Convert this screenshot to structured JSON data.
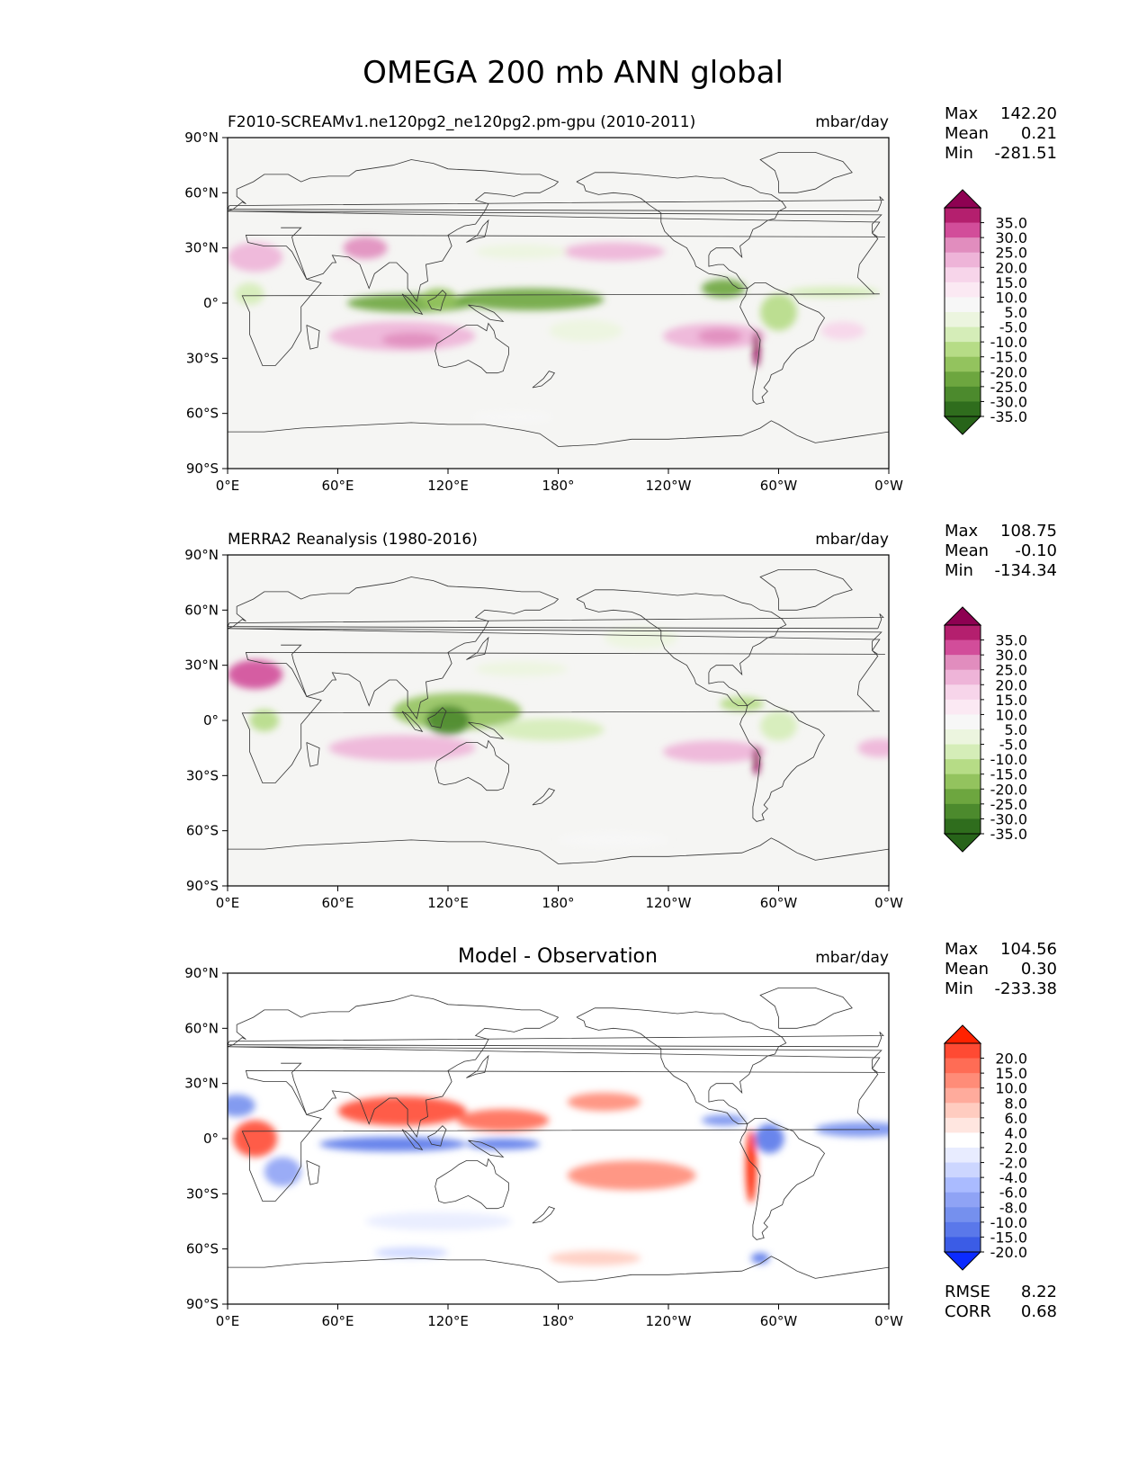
{
  "figure_title": "OMEGA 200 mb ANN global",
  "colors": {
    "ocean_bg": "#f5f5f3",
    "coast": "#333333",
    "piyg": [
      "#8e0152",
      "#b41f6e",
      "#d24d9a",
      "#e18dbe",
      "#eeb4d8",
      "#f7d5ea",
      "#fbe9f3",
      "#f7f7f7",
      "#ecf5df",
      "#d5edb8",
      "#b6dc86",
      "#93c35e",
      "#6da63f",
      "#4c8a2d",
      "#2f6d1d",
      "#276419"
    ],
    "diff": [
      "#ff2200",
      "#ff4a33",
      "#ff6c55",
      "#ff8c78",
      "#ffab9c",
      "#ffccc0",
      "#ffe6e0",
      "#ffffff",
      "#e8ecff",
      "#ccd6ff",
      "#aabbff",
      "#8fa3f5",
      "#7590ee",
      "#5a78ea",
      "#3b5ce6",
      "#0b2bff"
    ]
  },
  "panels": [
    {
      "id": "test",
      "left_title": "F2010-SCREAMv1.ne120pg2_ne120pg2.pm-gpu (2010-2011)",
      "center_title": "",
      "units": "mbar/day",
      "stats": [
        {
          "label": "Max",
          "value": "142.20"
        },
        {
          "label": "Mean",
          "value": "0.21"
        },
        {
          "label": "Min",
          "value": "-281.51"
        }
      ],
      "colorbar_labels": [
        "35.0",
        "30.0",
        "25.0",
        "20.0",
        "15.0",
        "10.0",
        "5.0",
        "-5.0",
        "-10.0",
        "-15.0",
        "-20.0",
        "-25.0",
        "-30.0",
        "-35.0"
      ]
    },
    {
      "id": "ref",
      "left_title": "MERRA2 Reanalysis (1980-2016)",
      "center_title": "",
      "units": "mbar/day",
      "stats": [
        {
          "label": "Max",
          "value": "108.75"
        },
        {
          "label": "Mean",
          "value": "-0.10"
        },
        {
          "label": "Min",
          "value": "-134.34"
        }
      ],
      "colorbar_labels": [
        "35.0",
        "30.0",
        "25.0",
        "20.0",
        "15.0",
        "10.0",
        "5.0",
        "-5.0",
        "-10.0",
        "-15.0",
        "-20.0",
        "-25.0",
        "-30.0",
        "-35.0"
      ]
    },
    {
      "id": "diff",
      "left_title": "",
      "center_title": "Model - Observation",
      "units": "mbar/day",
      "stats": [
        {
          "label": "Max",
          "value": "104.56"
        },
        {
          "label": "Mean",
          "value": "0.30"
        },
        {
          "label": "Min",
          "value": "-233.38"
        }
      ],
      "colorbar_labels": [
        "20.0",
        "15.0",
        "10.0",
        "8.0",
        "6.0",
        "4.0",
        "2.0",
        "-2.0",
        "-4.0",
        "-6.0",
        "-8.0",
        "-10.0",
        "-15.0",
        "-20.0"
      ],
      "footer_stats": [
        {
          "label": "RMSE",
          "value": "8.22"
        },
        {
          "label": "CORR",
          "value": "0.68"
        }
      ]
    }
  ],
  "chart_data": {
    "type": "heatmap",
    "title": "OMEGA 200 mb ANN global",
    "x_ticks": [
      "0°E",
      "60°E",
      "120°E",
      "180°",
      "120°W",
      "60°W",
      "0°W"
    ],
    "x_tick_values": [
      0,
      60,
      120,
      180,
      240,
      300,
      360
    ],
    "y_ticks": [
      "90°N",
      "60°N",
      "30°N",
      "0°",
      "30°S",
      "60°S",
      "90°S"
    ],
    "y_tick_values": [
      90,
      60,
      30,
      0,
      -30,
      -60,
      -90
    ],
    "xlim": [
      0,
      360
    ],
    "ylim": [
      -90,
      90
    ],
    "series": [
      {
        "name": "F2010-SCREAMv1.ne120pg2_ne120pg2.pm-gpu (2010-2011)",
        "features": [
          {
            "lon": 165,
            "lat": 2,
            "rx": 40,
            "ry": 6,
            "value": -30
          },
          {
            "lon": 100,
            "lat": 0,
            "rx": 35,
            "ry": 5,
            "value": -30
          },
          {
            "lon": 115,
            "lat": 2,
            "rx": 10,
            "ry": 6,
            "value": -25
          },
          {
            "lon": 270,
            "lat": 8,
            "rx": 12,
            "ry": 5,
            "value": -30
          },
          {
            "lon": 300,
            "lat": -5,
            "rx": 10,
            "ry": 10,
            "value": -20
          },
          {
            "lon": 330,
            "lat": 6,
            "rx": 25,
            "ry": 3,
            "value": -15
          },
          {
            "lon": 12,
            "lat": 5,
            "rx": 8,
            "ry": 6,
            "value": -15
          },
          {
            "lon": 195,
            "lat": -15,
            "rx": 20,
            "ry": 6,
            "value": -10
          },
          {
            "lon": 210,
            "lat": 28,
            "rx": 28,
            "ry": 5,
            "value": 15
          },
          {
            "lon": 95,
            "lat": -18,
            "rx": 40,
            "ry": 8,
            "value": 15
          },
          {
            "lon": 100,
            "lat": -20,
            "rx": 16,
            "ry": 4,
            "value": 20
          },
          {
            "lon": 265,
            "lat": -18,
            "rx": 28,
            "ry": 7,
            "value": 15
          },
          {
            "lon": 268,
            "lat": -18,
            "rx": 12,
            "ry": 4,
            "value": 20
          },
          {
            "lon": 15,
            "lat": 25,
            "rx": 15,
            "ry": 8,
            "value": 15
          },
          {
            "lon": 75,
            "lat": 30,
            "rx": 12,
            "ry": 6,
            "value": 20
          },
          {
            "lon": 288,
            "lat": -25,
            "rx": 2,
            "ry": 10,
            "value": 35
          },
          {
            "lon": 335,
            "lat": -15,
            "rx": 12,
            "ry": 5,
            "value": 10
          },
          {
            "lon": 160,
            "lat": 28,
            "rx": 25,
            "ry": 4,
            "value": -10
          },
          {
            "lon": 155,
            "lat": -62,
            "rx": 22,
            "ry": 3,
            "value": -5
          }
        ]
      },
      {
        "name": "MERRA2 Reanalysis (1980-2016)",
        "features": [
          {
            "lon": 125,
            "lat": 5,
            "rx": 35,
            "ry": 10,
            "value": -25
          },
          {
            "lon": 120,
            "lat": 0,
            "rx": 12,
            "ry": 8,
            "value": -35
          },
          {
            "lon": 175,
            "lat": -5,
            "rx": 30,
            "ry": 6,
            "value": -15
          },
          {
            "lon": 280,
            "lat": 9,
            "rx": 12,
            "ry": 4,
            "value": -20
          },
          {
            "lon": 300,
            "lat": -3,
            "rx": 10,
            "ry": 8,
            "value": -15
          },
          {
            "lon": 20,
            "lat": 0,
            "rx": 8,
            "ry": 6,
            "value": -20
          },
          {
            "lon": 160,
            "lat": 28,
            "rx": 25,
            "ry": 4,
            "value": -10
          },
          {
            "lon": 225,
            "lat": 45,
            "rx": 20,
            "ry": 6,
            "value": -10
          },
          {
            "lon": 15,
            "lat": 25,
            "rx": 15,
            "ry": 8,
            "value": 25
          },
          {
            "lon": 95,
            "lat": -15,
            "rx": 40,
            "ry": 7,
            "value": 15
          },
          {
            "lon": 265,
            "lat": -17,
            "rx": 28,
            "ry": 6,
            "value": 15
          },
          {
            "lon": 288,
            "lat": -22,
            "rx": 2,
            "ry": 8,
            "value": 35
          },
          {
            "lon": 355,
            "lat": -15,
            "rx": 12,
            "ry": 5,
            "value": 15
          },
          {
            "lon": 210,
            "lat": -65,
            "rx": 30,
            "ry": 4,
            "value": -5
          }
        ]
      },
      {
        "name": "Model - Observation",
        "features": [
          {
            "lon": 95,
            "lat": 15,
            "rx": 35,
            "ry": 8,
            "value": 15
          },
          {
            "lon": 150,
            "lat": 10,
            "rx": 25,
            "ry": 6,
            "value": 10
          },
          {
            "lon": 15,
            "lat": 0,
            "rx": 12,
            "ry": 10,
            "value": 15
          },
          {
            "lon": 90,
            "lat": -3,
            "rx": 40,
            "ry": 4,
            "value": -20
          },
          {
            "lon": 150,
            "lat": -3,
            "rx": 20,
            "ry": 3,
            "value": -20
          },
          {
            "lon": 5,
            "lat": 18,
            "rx": 10,
            "ry": 6,
            "value": -15
          },
          {
            "lon": 30,
            "lat": -18,
            "rx": 10,
            "ry": 8,
            "value": -10
          },
          {
            "lon": 345,
            "lat": 5,
            "rx": 25,
            "ry": 4,
            "value": -15
          },
          {
            "lon": 270,
            "lat": 10,
            "rx": 12,
            "ry": 3,
            "value": -15
          },
          {
            "lon": 295,
            "lat": 0,
            "rx": 8,
            "ry": 8,
            "value": -20
          },
          {
            "lon": 285,
            "lat": -15,
            "rx": 3,
            "ry": 20,
            "value": 20
          },
          {
            "lon": 220,
            "lat": -20,
            "rx": 35,
            "ry": 8,
            "value": 8
          },
          {
            "lon": 205,
            "lat": 20,
            "rx": 20,
            "ry": 5,
            "value": 8
          },
          {
            "lon": 115,
            "lat": -45,
            "rx": 40,
            "ry": 5,
            "value": -4
          },
          {
            "lon": 200,
            "lat": -65,
            "rx": 25,
            "ry": 4,
            "value": 4
          },
          {
            "lon": 100,
            "lat": -62,
            "rx": 20,
            "ry": 3,
            "value": -6
          },
          {
            "lon": 290,
            "lat": -65,
            "rx": 5,
            "ry": 3,
            "value": -20
          }
        ]
      }
    ]
  }
}
